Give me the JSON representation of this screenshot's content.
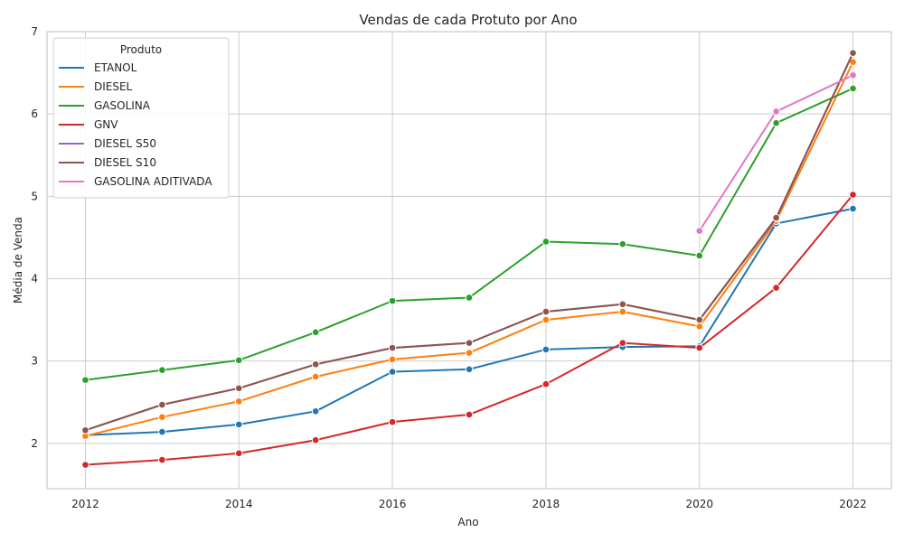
{
  "chart_data": {
    "type": "line",
    "title": "Vendas de cada Protuto por Ano",
    "xlabel": "Ano",
    "ylabel": "Média de Venda",
    "xlim": [
      2011.5,
      2022.5
    ],
    "ylim": [
      1.45,
      7.0
    ],
    "xticks": [
      2012,
      2014,
      2016,
      2018,
      2020,
      2022
    ],
    "yticks": [
      2,
      3,
      4,
      5,
      6,
      7
    ],
    "grid": true,
    "legend": {
      "title": "Produto",
      "placement": "top-left"
    },
    "series": [
      {
        "name": "ETANOL",
        "color": "#1f77b4",
        "x": [
          2012,
          2013,
          2014,
          2015,
          2016,
          2017,
          2018,
          2019,
          2020,
          2021,
          2022
        ],
        "y": [
          2.1,
          2.14,
          2.23,
          2.39,
          2.87,
          2.9,
          3.14,
          3.17,
          3.18,
          4.67,
          4.85
        ]
      },
      {
        "name": "DIESEL",
        "color": "#ff7f0e",
        "x": [
          2012,
          2013,
          2014,
          2015,
          2016,
          2017,
          2018,
          2019,
          2020,
          2021,
          2022
        ],
        "y": [
          2.09,
          2.32,
          2.51,
          2.81,
          3.02,
          3.1,
          3.5,
          3.6,
          3.42,
          4.7,
          6.63
        ]
      },
      {
        "name": "GASOLINA",
        "color": "#2ca02c",
        "x": [
          2012,
          2013,
          2014,
          2015,
          2016,
          2017,
          2018,
          2019,
          2020,
          2021,
          2022
        ],
        "y": [
          2.77,
          2.89,
          3.01,
          3.35,
          3.73,
          3.77,
          4.45,
          4.42,
          4.28,
          5.89,
          6.31
        ]
      },
      {
        "name": "GNV",
        "color": "#d62728",
        "x": [
          2012,
          2013,
          2014,
          2015,
          2016,
          2017,
          2018,
          2019,
          2020,
          2021,
          2022
        ],
        "y": [
          1.74,
          1.8,
          1.88,
          2.04,
          2.26,
          2.35,
          2.72,
          3.22,
          3.16,
          3.89,
          5.02
        ]
      },
      {
        "name": "DIESEL S50",
        "color": "#9467bd",
        "x": [
          2012,
          2013,
          2014,
          2015,
          2016,
          2017,
          2018,
          2019,
          2020,
          2021,
          2022
        ],
        "y": [
          2.16,
          2.47,
          2.67,
          2.96,
          3.16,
          3.22,
          3.6,
          3.69,
          3.5,
          4.73,
          6.74
        ]
      },
      {
        "name": "DIESEL S10",
        "color": "#8c564b",
        "x": [
          2012,
          2013,
          2014,
          2015,
          2016,
          2017,
          2018,
          2019,
          2020,
          2021,
          2022
        ],
        "y": [
          2.16,
          2.47,
          2.67,
          2.96,
          3.16,
          3.22,
          3.6,
          3.69,
          3.5,
          4.74,
          6.74
        ]
      },
      {
        "name": "GASOLINA ADITIVADA",
        "color": "#e377c2",
        "x": [
          2020,
          2021,
          2022
        ],
        "y": [
          4.58,
          6.03,
          6.47
        ]
      }
    ]
  }
}
